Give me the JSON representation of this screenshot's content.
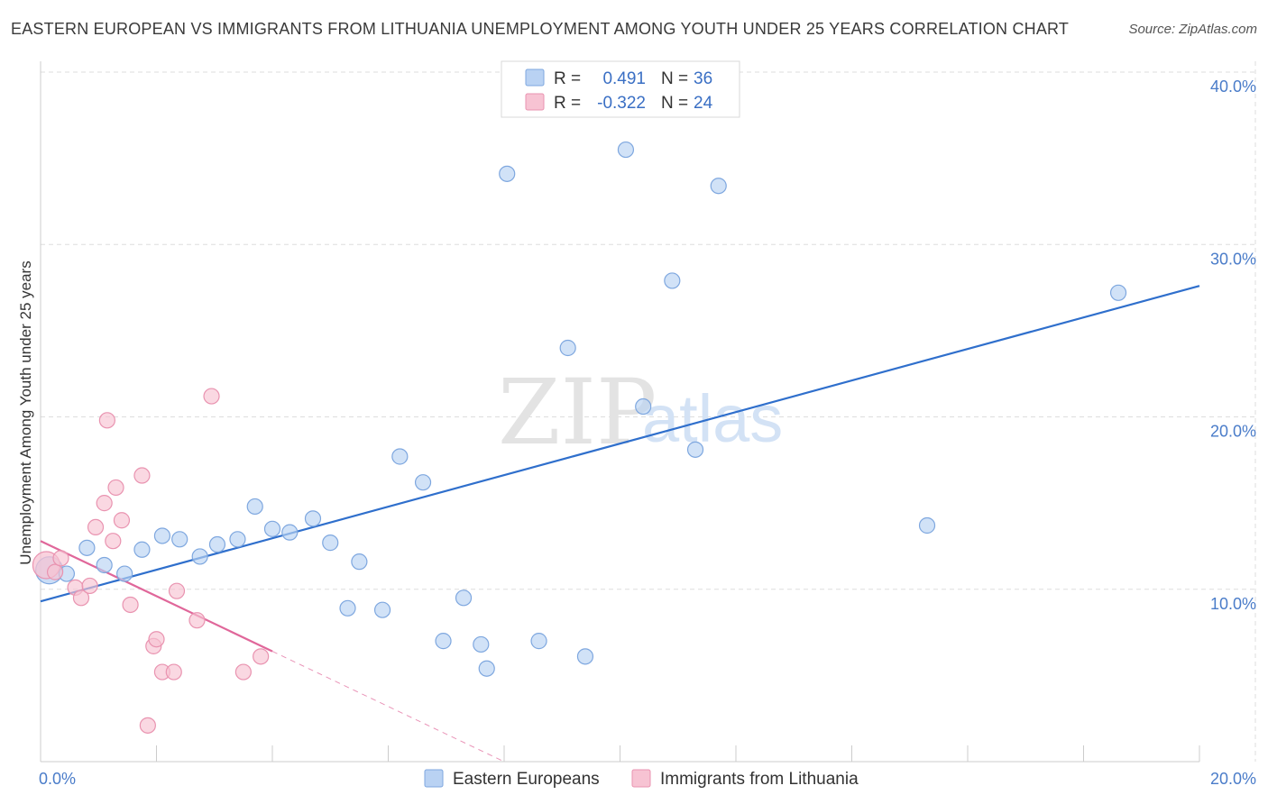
{
  "title": "EASTERN EUROPEAN VS IMMIGRANTS FROM LITHUANIA UNEMPLOYMENT AMONG YOUTH UNDER 25 YEARS CORRELATION CHART",
  "source": "Source: ZipAtlas.com",
  "watermark": {
    "zip": "ZIP",
    "atlas": "atlas"
  },
  "colors": {
    "blue_fill": "#b9d2f3",
    "blue_stroke": "#7ea7df",
    "blue_line": "#2f6fcc",
    "pink_fill": "#f7c3d3",
    "pink_stroke": "#e993b0",
    "pink_line": "#e0679a",
    "grid": "#dddddd",
    "tick_label": "#4a7cc9"
  },
  "legend": {
    "rows": [
      {
        "r_label": "R = ",
        "r_value": "0.491",
        "n_label": "N = ",
        "n_value": "36"
      },
      {
        "r_label": "R = ",
        "r_value": "-0.322",
        "n_label": "N = ",
        "n_value": "24"
      }
    ]
  },
  "bottom_legend": [
    "Eastern Europeans",
    "Immigrants from Lithuania"
  ],
  "chart_data": {
    "type": "scatter",
    "title": "EASTERN EUROPEAN VS IMMIGRANTS FROM LITHUANIA UNEMPLOYMENT AMONG YOUTH UNDER 25 YEARS CORRELATION CHART",
    "xlabel": "",
    "ylabel": "Unemployment Among Youth under 25 years",
    "xlim": [
      0,
      20
    ],
    "ylim": [
      0,
      40
    ],
    "x_tick_labels": [
      {
        "value": 0,
        "label": "0.0%"
      },
      {
        "value": 20,
        "label": "20.0%"
      }
    ],
    "y_tick_labels": [
      {
        "value": 10,
        "label": "10.0%"
      },
      {
        "value": 20,
        "label": "20.0%"
      },
      {
        "value": 30,
        "label": "30.0%"
      },
      {
        "value": 40,
        "label": "40.0%"
      }
    ],
    "x_minor_ticks": [
      0,
      2,
      4,
      6,
      8,
      10,
      12,
      14,
      16,
      18,
      20
    ],
    "y_gridlines": [
      10,
      20,
      30,
      40
    ],
    "legend_position": "top-center",
    "series": [
      {
        "name": "Eastern Europeans",
        "color_key": "blue",
        "R": 0.491,
        "N": 36,
        "trend": {
          "x0": 0,
          "y0": 9.3,
          "x1": 20,
          "y1": 27.6,
          "dashed_to": null
        },
        "points": [
          {
            "x": 0.15,
            "y": 11.1,
            "big": true
          },
          {
            "x": 0.45,
            "y": 10.9
          },
          {
            "x": 0.8,
            "y": 12.4
          },
          {
            "x": 1.1,
            "y": 11.4
          },
          {
            "x": 1.45,
            "y": 10.9
          },
          {
            "x": 1.75,
            "y": 12.3
          },
          {
            "x": 2.1,
            "y": 13.1
          },
          {
            "x": 2.4,
            "y": 12.9
          },
          {
            "x": 2.75,
            "y": 11.9
          },
          {
            "x": 3.05,
            "y": 12.6
          },
          {
            "x": 3.4,
            "y": 12.9
          },
          {
            "x": 3.7,
            "y": 14.8
          },
          {
            "x": 4.0,
            "y": 13.5
          },
          {
            "x": 4.3,
            "y": 13.3
          },
          {
            "x": 4.7,
            "y": 14.1
          },
          {
            "x": 5.0,
            "y": 12.7
          },
          {
            "x": 5.3,
            "y": 8.9
          },
          {
            "x": 5.5,
            "y": 11.6
          },
          {
            "x": 5.9,
            "y": 8.8
          },
          {
            "x": 6.2,
            "y": 17.7
          },
          {
            "x": 6.6,
            "y": 16.2
          },
          {
            "x": 6.95,
            "y": 7.0
          },
          {
            "x": 7.3,
            "y": 9.5
          },
          {
            "x": 7.6,
            "y": 6.8
          },
          {
            "x": 7.7,
            "y": 5.4
          },
          {
            "x": 8.05,
            "y": 34.1
          },
          {
            "x": 8.6,
            "y": 7.0
          },
          {
            "x": 9.1,
            "y": 24.0
          },
          {
            "x": 9.4,
            "y": 6.1
          },
          {
            "x": 10.1,
            "y": 35.5
          },
          {
            "x": 10.4,
            "y": 20.6
          },
          {
            "x": 10.9,
            "y": 27.9
          },
          {
            "x": 11.3,
            "y": 18.1
          },
          {
            "x": 11.7,
            "y": 33.4
          },
          {
            "x": 15.3,
            "y": 13.7
          },
          {
            "x": 18.6,
            "y": 27.2
          }
        ]
      },
      {
        "name": "Immigrants from Lithuania",
        "color_key": "pink",
        "R": -0.322,
        "N": 24,
        "trend": {
          "x0": 0,
          "y0": 12.8,
          "x1": 4.0,
          "y1": 6.4,
          "dashed_to": {
            "x": 8.0,
            "y": 0
          }
        },
        "points": [
          {
            "x": 0.1,
            "y": 11.4,
            "big": true
          },
          {
            "x": 0.25,
            "y": 11.0
          },
          {
            "x": 0.35,
            "y": 11.8
          },
          {
            "x": 0.6,
            "y": 10.1
          },
          {
            "x": 0.7,
            "y": 9.5
          },
          {
            "x": 0.85,
            "y": 10.2
          },
          {
            "x": 0.95,
            "y": 13.6
          },
          {
            "x": 1.1,
            "y": 15.0
          },
          {
            "x": 1.15,
            "y": 19.8
          },
          {
            "x": 1.25,
            "y": 12.8
          },
          {
            "x": 1.3,
            "y": 15.9
          },
          {
            "x": 1.4,
            "y": 14.0
          },
          {
            "x": 1.55,
            "y": 9.1
          },
          {
            "x": 1.75,
            "y": 16.6
          },
          {
            "x": 1.85,
            "y": 2.1
          },
          {
            "x": 1.95,
            "y": 6.7
          },
          {
            "x": 2.0,
            "y": 7.1
          },
          {
            "x": 2.1,
            "y": 5.2
          },
          {
            "x": 2.3,
            "y": 5.2
          },
          {
            "x": 2.35,
            "y": 9.9
          },
          {
            "x": 2.7,
            "y": 8.2
          },
          {
            "x": 2.95,
            "y": 21.2
          },
          {
            "x": 3.5,
            "y": 5.2
          },
          {
            "x": 3.8,
            "y": 6.1
          }
        ]
      }
    ]
  }
}
